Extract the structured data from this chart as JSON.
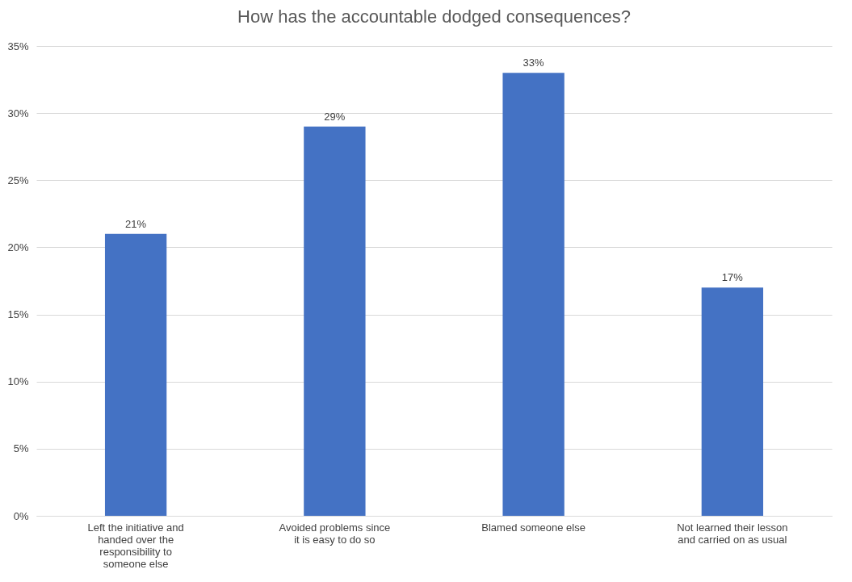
{
  "chart_data": {
    "type": "bar",
    "title": "How has the accountable dodged consequences?",
    "categories": [
      "Left the initiative and handed over the responsibility to someone else",
      "Avoided problems since it is easy to do so",
      "Blamed someone else",
      "Not learned their lesson and carried on as usual"
    ],
    "values": [
      21,
      29,
      33,
      17
    ],
    "value_labels": [
      "21%",
      "29%",
      "33%",
      "17%"
    ],
    "color": "#4472c4",
    "ylim": [
      0,
      35
    ],
    "yticks": [
      {
        "value": 0,
        "label": "0%"
      },
      {
        "value": 5,
        "label": "5%"
      },
      {
        "value": 10,
        "label": "10%"
      },
      {
        "value": 15,
        "label": "15%"
      },
      {
        "value": 20,
        "label": "20%"
      },
      {
        "value": 25,
        "label": "25%"
      },
      {
        "value": 30,
        "label": "30%"
      },
      {
        "value": 35,
        "label": "35%"
      }
    ],
    "grid": "y"
  }
}
